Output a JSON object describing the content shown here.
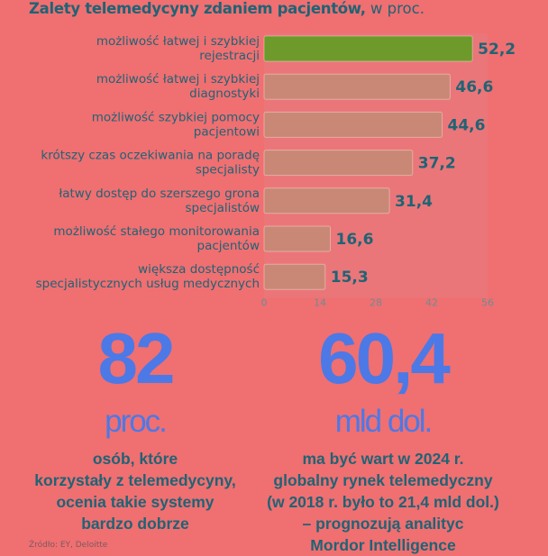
{
  "title": {
    "bold": "Zalety telemedycyny zdaniem pacjentów,",
    "unit": "w proc."
  },
  "chart_data": {
    "type": "bar",
    "orientation": "horizontal",
    "title": "Zalety telemedycyny zdaniem pacjentów, w proc.",
    "categories": [
      [
        "możliwość łatwej i szybkiej",
        "rejestracji"
      ],
      [
        "możliwość łatwej i szybkiej",
        "diagnostyki"
      ],
      [
        "możliwość szybkiej pomocy",
        "pacjentowi"
      ],
      [
        "krótszy czas oczekiwania na poradę",
        "specjalisty"
      ],
      [
        "łatwy dostęp do szerszego grona",
        "specjalistów"
      ],
      [
        "możliwość stałego monitorowania",
        "pacjentów"
      ],
      [
        "większa dostępność",
        "specjalistycznych usług medycznych"
      ]
    ],
    "values": [
      52.2,
      46.6,
      44.6,
      37.2,
      31.4,
      16.6,
      15.3
    ],
    "value_labels": [
      "52,2",
      "46,6",
      "44,6",
      "37,2",
      "31,4",
      "16,6",
      "15,3"
    ],
    "xlim": [
      0,
      56
    ],
    "xticks": [
      0,
      14,
      28,
      42,
      56
    ],
    "colors": {
      "highlight": "#6e9a2c",
      "bar": "#c98875",
      "plot_bg": "#ea7679",
      "value": "#1e6475"
    }
  },
  "stat_left": {
    "number": "82",
    "unit": "proc.",
    "lines": [
      "osób, które",
      "korzystały z telemedycyny,",
      "ocenia takie systemy",
      "bardzo dobrze"
    ]
  },
  "stat_right": {
    "number": "60,4",
    "unit": "mld dol.",
    "lines": [
      "ma być wart w 2024 r.",
      "globalny rynek telemedyczny",
      "(w 2018 r. było to 21,4 mld dol.)",
      "– prognozują analityc",
      "Mordor Intelligence"
    ]
  },
  "source": "Źródło: EY, Deloitte"
}
